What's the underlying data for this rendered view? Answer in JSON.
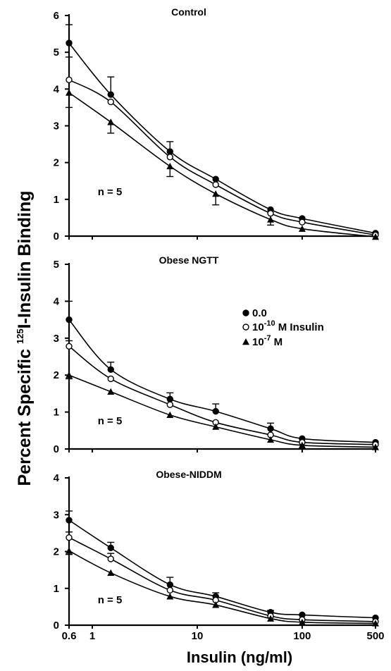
{
  "chart_data": {
    "type": "line",
    "ylabel_prefix": "Percent Specific ",
    "ylabel_sup": "125",
    "ylabel_suffix": "I-Insulin  Binding",
    "xlabel": "Insulin (ng/ml)",
    "x_scale": "log",
    "x_ticks": [
      {
        "value": 0.6,
        "label": "0.6"
      },
      {
        "value": 1,
        "label": "1"
      },
      {
        "value": 10,
        "label": "10"
      },
      {
        "value": 100,
        "label": "100"
      },
      {
        "value": 500,
        "label": "500"
      }
    ],
    "legend": {
      "location": "inside middle panel, upper right",
      "entries": [
        {
          "marker": "filled-circle",
          "label": "0.0"
        },
        {
          "marker": "open-circle",
          "base": "10",
          "sup": "-10",
          "rest": " M Insulin"
        },
        {
          "marker": "filled-triangle",
          "base": "10",
          "sup": "-7",
          "rest": " M"
        }
      ]
    },
    "x_points": [
      0.6,
      1.5,
      5.5,
      15,
      50,
      100,
      500
    ],
    "panels": [
      {
        "title": "Control",
        "n_label": "n = 5",
        "ylim": [
          0,
          6
        ],
        "yticks": [
          0,
          1,
          2,
          3,
          4,
          5,
          6
        ],
        "series": [
          {
            "marker": "filled-circle",
            "values": [
              5.25,
              3.85,
              2.3,
              1.55,
              0.72,
              0.48,
              0.08
            ],
            "errors": [
              0.5,
              0.48,
              0.27,
              0,
              0,
              0,
              0
            ]
          },
          {
            "marker": "open-circle",
            "values": [
              4.25,
              3.65,
              2.15,
              1.4,
              0.62,
              0.38,
              0.03
            ],
            "errors": [
              0.62,
              0,
              0,
              0,
              0,
              0,
              0
            ]
          },
          {
            "marker": "filled-triangle",
            "values": [
              3.9,
              3.1,
              1.9,
              1.15,
              0.45,
              0.2,
              -0.02
            ],
            "errors": [
              0.4,
              0.3,
              0.28,
              0.3,
              0.15,
              0,
              0
            ]
          }
        ]
      },
      {
        "title": "Obese NGTT",
        "n_label": "n = 5",
        "ylim": [
          0,
          5
        ],
        "yticks": [
          0,
          1,
          2,
          3,
          4,
          5
        ],
        "series": [
          {
            "marker": "filled-circle",
            "values": [
              3.5,
              2.15,
              1.35,
              1.02,
              0.55,
              0.28,
              0.18
            ],
            "errors": [
              0.5,
              0.2,
              0.17,
              0.2,
              0.15,
              0,
              0
            ]
          },
          {
            "marker": "open-circle",
            "values": [
              2.78,
              1.9,
              1.2,
              0.72,
              0.38,
              0.18,
              0.12
            ],
            "errors": [
              0.15,
              0,
              0,
              0,
              0,
              0,
              0
            ]
          },
          {
            "marker": "filled-triangle",
            "values": [
              2.0,
              1.55,
              0.92,
              0.6,
              0.25,
              0.1,
              0.05
            ],
            "errors": [
              0.1,
              0,
              0,
              0,
              0,
              0,
              0
            ]
          }
        ]
      },
      {
        "title": "Obese-NIDDM",
        "n_label": "n = 5",
        "ylim": [
          0,
          4
        ],
        "yticks": [
          0,
          1,
          2,
          3,
          4
        ],
        "series": [
          {
            "marker": "filled-circle",
            "values": [
              2.85,
              2.1,
              1.1,
              0.78,
              0.35,
              0.28,
              0.2
            ],
            "errors": [
              0.25,
              0.15,
              0.2,
              0.1,
              0.05,
              0,
              0
            ]
          },
          {
            "marker": "open-circle",
            "values": [
              2.38,
              1.8,
              0.95,
              0.68,
              0.25,
              0.15,
              0.1
            ],
            "errors": [
              0.15,
              0.15,
              0,
              0,
              0,
              0,
              0
            ]
          },
          {
            "marker": "filled-triangle",
            "values": [
              2.02,
              1.42,
              0.78,
              0.55,
              0.18,
              0.08,
              0.05
            ],
            "errors": [
              0.1,
              0,
              0,
              0,
              0,
              0,
              0
            ]
          }
        ]
      }
    ]
  }
}
